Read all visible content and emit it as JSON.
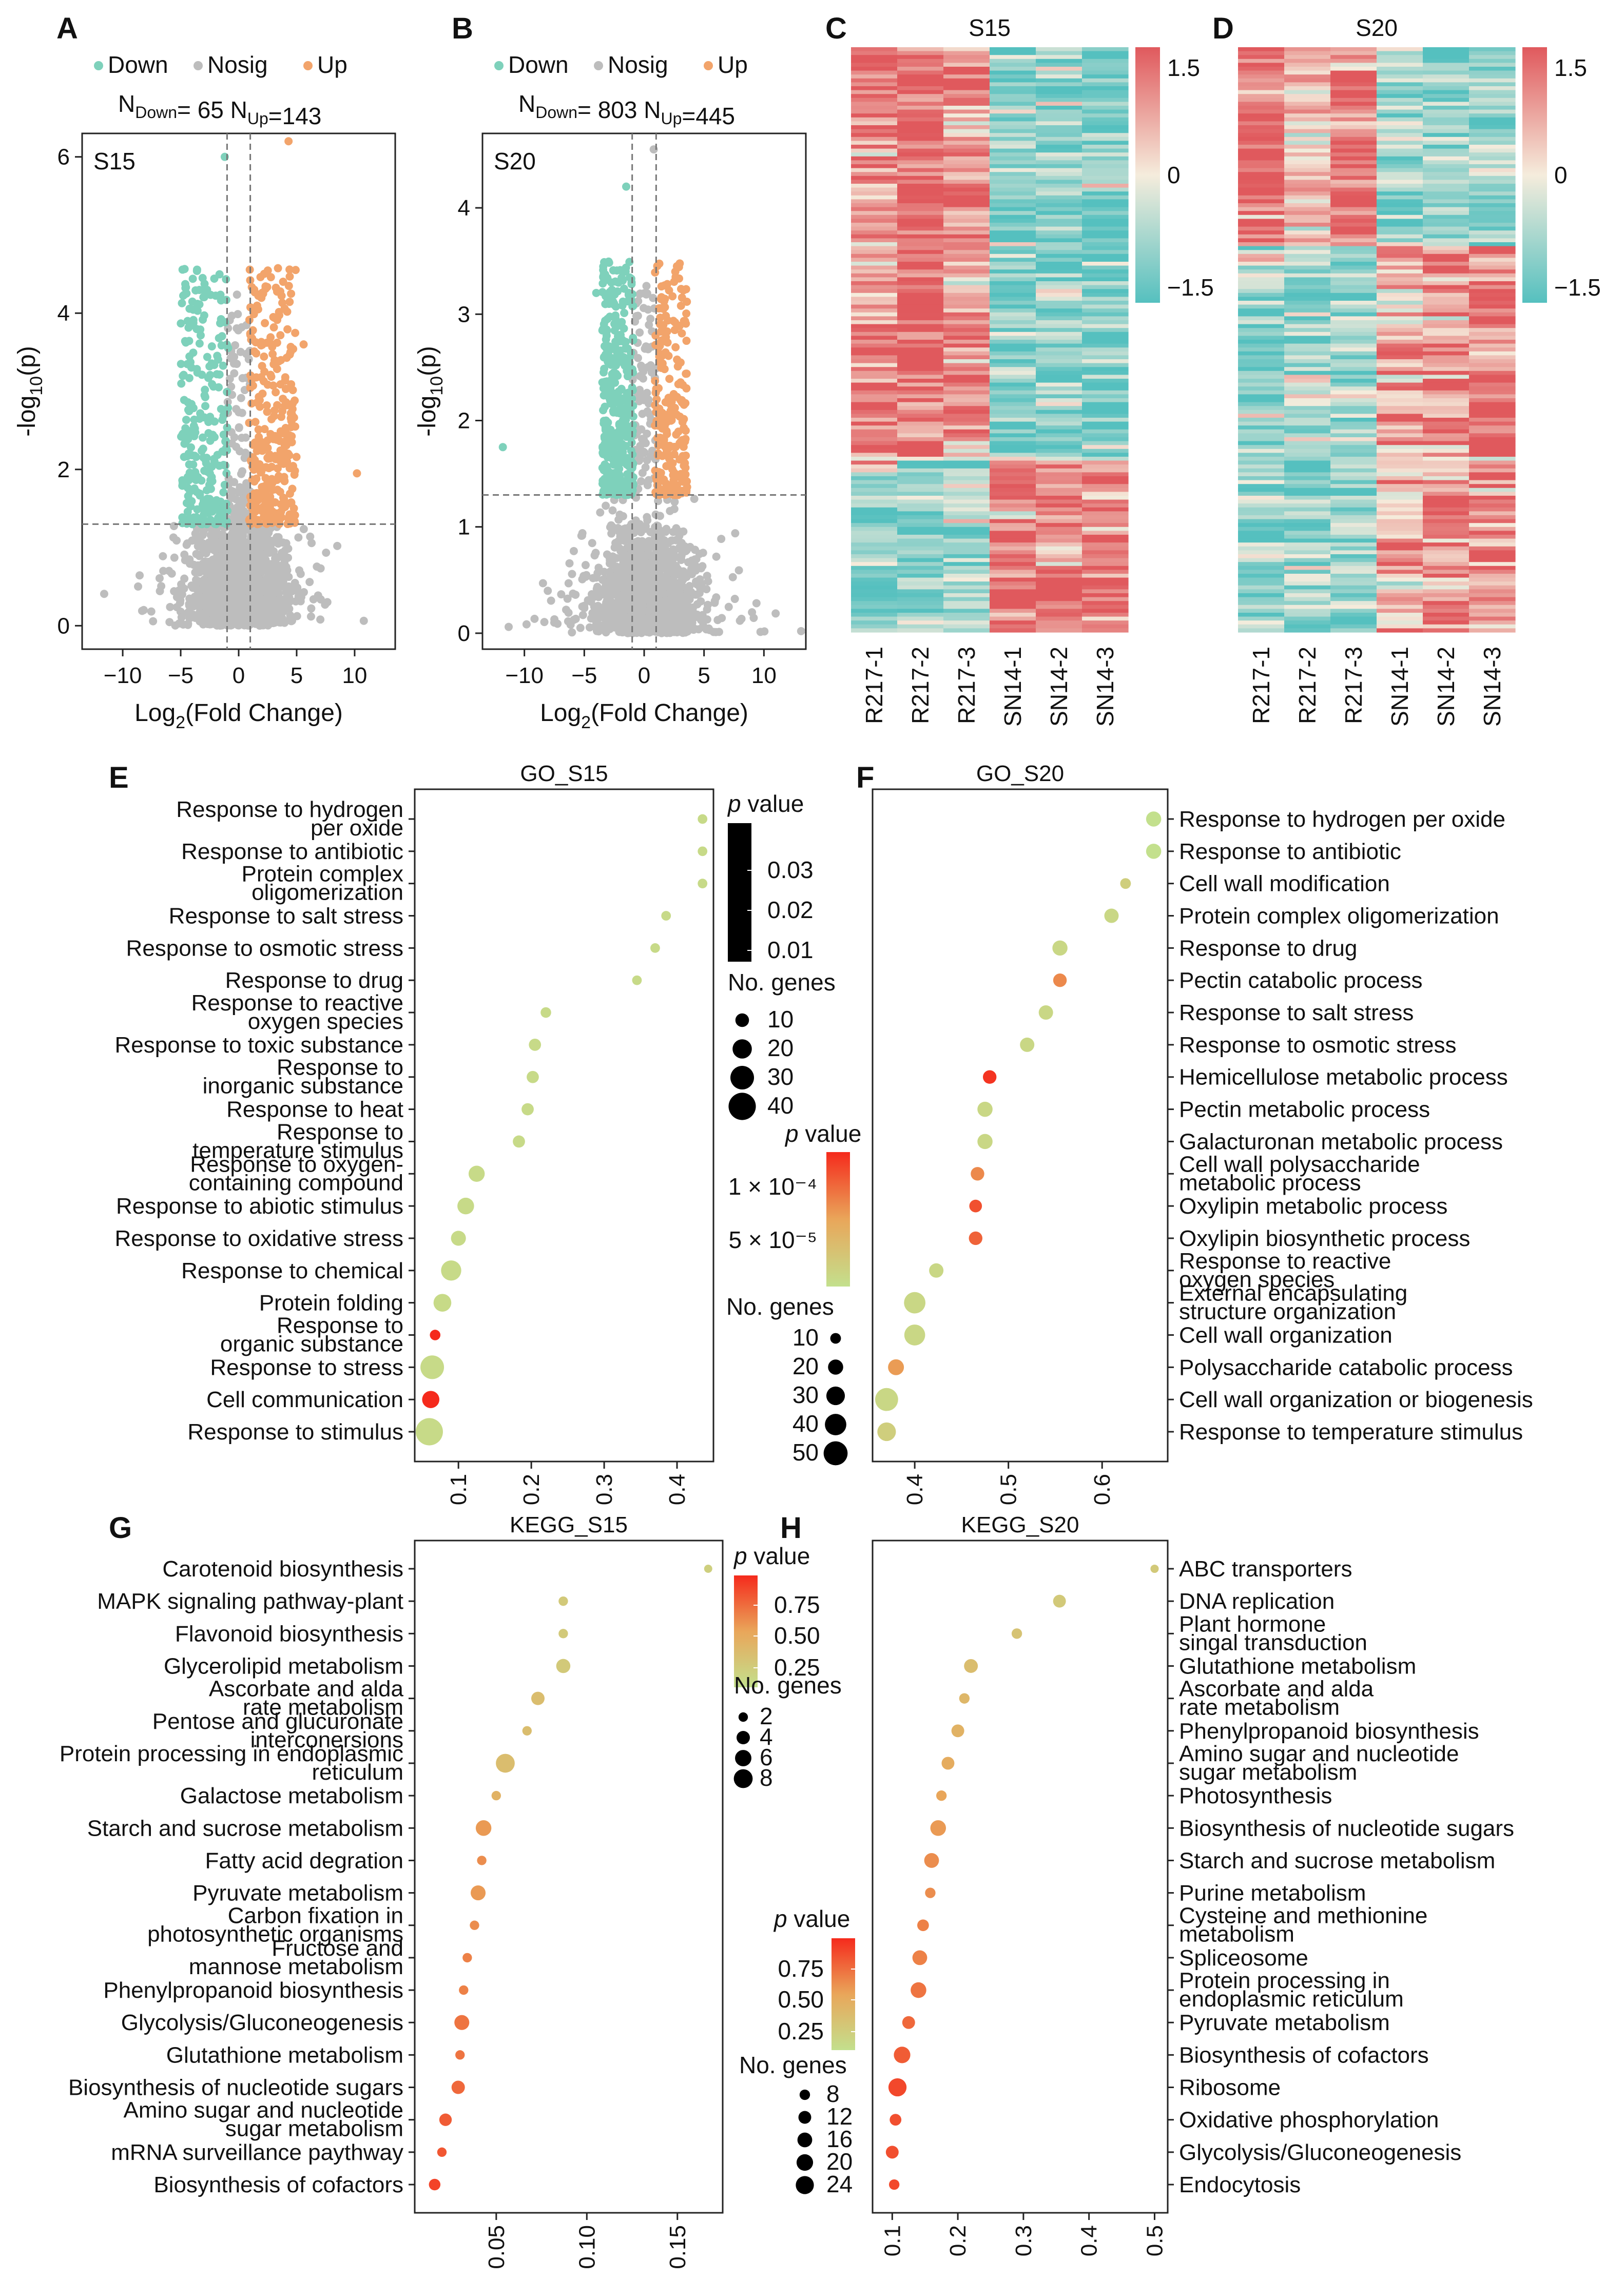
{
  "panels": {
    "A": "A",
    "B": "B",
    "C": "C",
    "D": "D",
    "E": "E",
    "F": "F",
    "G": "G",
    "H": "H"
  },
  "colors": {
    "down": "#7ed1bb",
    "nosig": "#bdbdbd",
    "up": "#f2a46b",
    "heat_high": "#e0595d",
    "heat_mid": "#f5ecdc",
    "heat_low": "#55c0bf",
    "pval_high": "#f52a1c",
    "pval_low": "#c3e08d"
  },
  "volcano": {
    "legend": {
      "down": "Down",
      "nosig": "Nosig",
      "up": "Up"
    },
    "xlabel_prefix": "Log",
    "xlabel_sub": "2",
    "xlabel_suffix": "(Fold Change)",
    "ylabel_prefix": "-log",
    "ylabel_sub": "10",
    "ylabel_suffix": "(p)",
    "n_prefix": "N",
    "down_sub": "Down",
    "up_sub": "Up"
  },
  "chart_data": [
    {
      "id": "A",
      "type": "scatter",
      "title": "S15",
      "n_down": "65",
      "n_up": "143",
      "xlim": [
        -13.5,
        13.5
      ],
      "ylim": [
        -0.3,
        6.3
      ],
      "xticks": [
        -10,
        -5,
        0,
        5,
        10
      ],
      "yticks": [
        0,
        2,
        4,
        6
      ],
      "fc_threshold": [
        -1,
        1
      ],
      "p_threshold": 1.3,
      "spread": {
        "down_x": [
          -5,
          -0.9
        ],
        "up_x": [
          0.9,
          5
        ],
        "max_y": 4.6
      },
      "highlight_points": [
        [
          4.3,
          6.2
        ],
        [
          -1.2,
          6.0
        ],
        [
          10.2,
          1.95
        ],
        [
          -4.4,
          3.9
        ],
        [
          5.6,
          3.6
        ]
      ]
    },
    {
      "id": "B",
      "type": "scatter",
      "title": "S20",
      "n_down": "803",
      "n_up": "445",
      "xlim": [
        -13.5,
        13.5
      ],
      "ylim": [
        -0.15,
        4.7
      ],
      "xticks": [
        -10,
        -5,
        0,
        5,
        10
      ],
      "yticks": [
        0,
        1,
        2,
        3,
        4
      ],
      "fc_threshold": [
        -1,
        1
      ],
      "p_threshold": 1.3,
      "spread": {
        "down_x": [
          -3.5,
          -0.9
        ],
        "up_x": [
          0.9,
          3.6
        ],
        "max_y": 3.5
      },
      "highlight_points": [
        [
          0.8,
          4.55
        ],
        [
          -1.5,
          4.2
        ],
        [
          -11.8,
          1.75
        ],
        [
          -3,
          1.9
        ],
        [
          2.6,
          3.4
        ],
        [
          -4,
          3.2
        ]
      ]
    },
    {
      "id": "C",
      "type": "heatmap",
      "title": "S15",
      "columns": [
        "R217-1",
        "R217-2",
        "R217-3",
        "SN14-1",
        "SN14-2",
        "SN14-3"
      ],
      "scale_ticks": [
        "1.5",
        "0",
        "−1.5"
      ],
      "row_count": 208,
      "block_split_fraction": 0.7
    },
    {
      "id": "D",
      "type": "heatmap",
      "title": "S20",
      "columns": [
        "R217-1",
        "R217-2",
        "R217-3",
        "SN14-1",
        "SN14-2",
        "SN14-3"
      ],
      "scale_ticks": [
        "1.5",
        "0",
        "−1.5"
      ],
      "row_count": 1248,
      "block_split_fraction": 0.34
    },
    {
      "id": "E",
      "type": "scatter",
      "title": "GO_S15",
      "xlim": [
        0.04,
        0.45
      ],
      "xticks": [
        "0.1",
        "0.2",
        "0.3",
        "0.4"
      ],
      "terms": [
        {
          "label": [
            "Response to hydrogen",
            "per oxide"
          ],
          "x": 0.435,
          "n": 5,
          "p": 0.03
        },
        {
          "label": [
            "Response to antibiotic"
          ],
          "x": 0.435,
          "n": 5,
          "p": 0.03
        },
        {
          "label": [
            "Protein complex",
            "oligomerization"
          ],
          "x": 0.435,
          "n": 5,
          "p": 0.03
        },
        {
          "label": [
            "Response to salt stress"
          ],
          "x": 0.385,
          "n": 5,
          "p": 0.03
        },
        {
          "label": [
            "Response to osmotic stress"
          ],
          "x": 0.37,
          "n": 5,
          "p": 0.03
        },
        {
          "label": [
            "Response to drug"
          ],
          "x": 0.345,
          "n": 5,
          "p": 0.03
        },
        {
          "label": [
            "Response to reactive",
            "oxygen species"
          ],
          "x": 0.22,
          "n": 6,
          "p": 0.028
        },
        {
          "label": [
            "Response to toxic substance"
          ],
          "x": 0.205,
          "n": 8,
          "p": 0.028
        },
        {
          "label": [
            "Response to",
            "inorganic substance"
          ],
          "x": 0.202,
          "n": 8,
          "p": 0.026
        },
        {
          "label": [
            "Response to heat"
          ],
          "x": 0.195,
          "n": 8,
          "p": 0.026
        },
        {
          "label": [
            "Response to",
            "temperature stimulus"
          ],
          "x": 0.183,
          "n": 8,
          "p": 0.026
        },
        {
          "label": [
            "Response to oxygen-",
            "containing compound"
          ],
          "x": 0.125,
          "n": 14,
          "p": 0.024
        },
        {
          "label": [
            "Response to abiotic stimulus"
          ],
          "x": 0.11,
          "n": 15,
          "p": 0.022
        },
        {
          "label": [
            "Response to oxidative stress"
          ],
          "x": 0.1,
          "n": 12,
          "p": 0.022
        },
        {
          "label": [
            "Response to chemical"
          ],
          "x": 0.09,
          "n": 22,
          "p": 0.02
        },
        {
          "label": [
            "Protein folding"
          ],
          "x": 0.078,
          "n": 17,
          "p": 0.016
        },
        {
          "label": [
            "Response to",
            "organic substance"
          ],
          "x": 0.068,
          "n": 6,
          "p": 0.001
        },
        {
          "label": [
            "Response to stress"
          ],
          "x": 0.064,
          "n": 30,
          "p": 0.018
        },
        {
          "label": [
            "Cell communication"
          ],
          "x": 0.062,
          "n": 16,
          "p": 0.001
        },
        {
          "label": [
            "Response to stimulus"
          ],
          "x": 0.06,
          "n": 40,
          "p": 0.02
        }
      ],
      "legend": {
        "pvalue_title": "value",
        "pvalue_ticks": [
          "0.03",
          "0.02",
          "0.01"
        ],
        "ngenes_title": "No. genes",
        "ngenes_ticks": [
          "10",
          "20",
          "30",
          "40"
        ]
      }
    },
    {
      "id": "F",
      "type": "scatter",
      "title": "GO_S20",
      "xlim": [
        0.355,
        0.67
      ],
      "xticks": [
        "0.4",
        "0.5",
        "0.6"
      ],
      "terms": [
        {
          "label": [
            "Response to hydrogen per oxide"
          ],
          "x": 0.655,
          "n": 20,
          "p": 2e-05
        },
        {
          "label": [
            "Response to antibiotic"
          ],
          "x": 0.655,
          "n": 20,
          "p": 2e-05
        },
        {
          "label": [
            "Cell wall modification"
          ],
          "x": 0.625,
          "n": 10,
          "p": 4e-05
        },
        {
          "label": [
            "Protein complex oligomerization"
          ],
          "x": 0.61,
          "n": 18,
          "p": 3e-05
        },
        {
          "label": [
            "Response to drug"
          ],
          "x": 0.555,
          "n": 20,
          "p": 3e-05
        },
        {
          "label": [
            "Pectin catabolic process"
          ],
          "x": 0.555,
          "n": 16,
          "p": 0.0001
        },
        {
          "label": [
            "Response to salt stress"
          ],
          "x": 0.54,
          "n": 18,
          "p": 3e-05
        },
        {
          "label": [
            "Response to osmotic stress"
          ],
          "x": 0.52,
          "n": 18,
          "p": 3e-05
        },
        {
          "label": [
            "Hemicellulose metabolic process"
          ],
          "x": 0.48,
          "n": 16,
          "p": 0.000145
        },
        {
          "label": [
            "Pectin metabolic process"
          ],
          "x": 0.475,
          "n": 20,
          "p": 3e-05
        },
        {
          "label": [
            "Galacturonan metabolic process"
          ],
          "x": 0.475,
          "n": 20,
          "p": 3e-05
        },
        {
          "label": [
            "Cell wall polysaccharide",
            "metabolic process"
          ],
          "x": 0.467,
          "n": 16,
          "p": 0.0001
        },
        {
          "label": [
            "Oxylipin metabolic process"
          ],
          "x": 0.465,
          "n": 14,
          "p": 0.00013
        },
        {
          "label": [
            "Oxylipin biosynthetic process"
          ],
          "x": 0.465,
          "n": 16,
          "p": 0.00012
        },
        {
          "label": [
            "Response to reactive",
            "oxygen species"
          ],
          "x": 0.423,
          "n": 18,
          "p": 3e-05
        },
        {
          "label": [
            "External encapsulating",
            "structure organization"
          ],
          "x": 0.4,
          "n": 40,
          "p": 3e-05
        },
        {
          "label": [
            "Cell wall organization"
          ],
          "x": 0.4,
          "n": 38,
          "p": 3e-05
        },
        {
          "label": [
            "Polysaccharide catabolic process"
          ],
          "x": 0.38,
          "n": 22,
          "p": 9e-05
        },
        {
          "label": [
            "Cell wall organization or biogenesis"
          ],
          "x": 0.37,
          "n": 46,
          "p": 3e-05
        },
        {
          "label": [
            "Response to temperature stimulus"
          ],
          "x": 0.37,
          "n": 30,
          "p": 4e-05
        }
      ],
      "legend": {
        "pvalue_title": "value",
        "pvalue_ticks": [
          "1 × 10⁻⁴",
          "5 × 10⁻⁵"
        ],
        "ngenes_title": "No. genes",
        "ngenes_ticks": [
          "10",
          "20",
          "30",
          "40",
          "50"
        ]
      }
    },
    {
      "id": "G",
      "type": "scatter",
      "title": "KEGG_S15",
      "xlim": [
        0.005,
        0.175
      ],
      "xticks": [
        "0.05",
        "0.10",
        "0.15"
      ],
      "terms": [
        {
          "label": [
            "Carotenoid biosynthesis"
          ],
          "x": 0.167,
          "n": 1.5,
          "p": 0.15
        },
        {
          "label": [
            "MAPK signaling pathway-plant"
          ],
          "x": 0.087,
          "n": 2,
          "p": 0.2
        },
        {
          "label": [
            "Flavonoid biosynthesis"
          ],
          "x": 0.087,
          "n": 2,
          "p": 0.2
        },
        {
          "label": [
            "Glycerolipid metabolism"
          ],
          "x": 0.087,
          "n": 4.5,
          "p": 0.2
        },
        {
          "label": [
            "Ascorbate and alda",
            "rate metabolism"
          ],
          "x": 0.073,
          "n": 4,
          "p": 0.3
        },
        {
          "label": [
            "Pentose and glucuronate",
            "interconersions"
          ],
          "x": 0.067,
          "n": 2,
          "p": 0.3
        },
        {
          "label": [
            "Protein processing in endoplasmic",
            "reticulum"
          ],
          "x": 0.055,
          "n": 8,
          "p": 0.3
        },
        {
          "label": [
            "Galactose metabolism"
          ],
          "x": 0.05,
          "n": 2,
          "p": 0.4
        },
        {
          "label": [
            "Starch and sucrose metabolism"
          ],
          "x": 0.043,
          "n": 5.5,
          "p": 0.55
        },
        {
          "label": [
            "Fatty acid degration"
          ],
          "x": 0.042,
          "n": 2,
          "p": 0.6
        },
        {
          "label": [
            "Pyruvate metabolism"
          ],
          "x": 0.04,
          "n": 5,
          "p": 0.55
        },
        {
          "label": [
            "Carbon fixation in",
            "photosynthetic organisms"
          ],
          "x": 0.038,
          "n": 2,
          "p": 0.6
        },
        {
          "label": [
            "Fructose and",
            "mannose metabolism"
          ],
          "x": 0.034,
          "n": 2,
          "p": 0.65
        },
        {
          "label": [
            "Phenylpropanoid biosynthesis"
          ],
          "x": 0.032,
          "n": 2,
          "p": 0.65
        },
        {
          "label": [
            "Glycolysis/Gluconeogenesis"
          ],
          "x": 0.031,
          "n": 5,
          "p": 0.7
        },
        {
          "label": [
            "Glutathione metabolism"
          ],
          "x": 0.03,
          "n": 2,
          "p": 0.7
        },
        {
          "label": [
            "Biosynthesis of nucleotide sugars"
          ],
          "x": 0.029,
          "n": 4,
          "p": 0.75
        },
        {
          "label": [
            "Amino sugar and nucleotide",
            "sugar metabolism"
          ],
          "x": 0.022,
          "n": 3.5,
          "p": 0.8
        },
        {
          "label": [
            "mRNA surveillance paythway"
          ],
          "x": 0.02,
          "n": 2,
          "p": 0.82
        },
        {
          "label": [
            "Biosynthesis of cofactors"
          ],
          "x": 0.016,
          "n": 3,
          "p": 0.9
        }
      ],
      "legend": {
        "pvalue_title": "value",
        "pvalue_ticks": [
          "0.75",
          "0.50",
          "0.25"
        ],
        "ngenes_title": "No. genes",
        "ngenes_ticks": [
          "2",
          "4",
          "6",
          "8"
        ]
      }
    },
    {
      "id": "H",
      "type": "scatter",
      "title": "KEGG_S20",
      "xlim": [
        0.07,
        0.52
      ],
      "xticks": [
        "0.1",
        "0.2",
        "0.3",
        "0.4",
        "0.5"
      ],
      "terms": [
        {
          "label": [
            "ABC transporters"
          ],
          "x": 0.5,
          "n": 5,
          "p": 0.2
        },
        {
          "label": [
            "DNA replication"
          ],
          "x": 0.355,
          "n": 12,
          "p": 0.2
        },
        {
          "label": [
            "Plant hormone",
            "singal transduction"
          ],
          "x": 0.29,
          "n": 8,
          "p": 0.25
        },
        {
          "label": [
            "Glutathione metabolism"
          ],
          "x": 0.22,
          "n": 14,
          "p": 0.3
        },
        {
          "label": [
            "Ascorbate and alda",
            "rate metabolism"
          ],
          "x": 0.21,
          "n": 8,
          "p": 0.35
        },
        {
          "label": [
            "Phenylpropanoid biosynthesis"
          ],
          "x": 0.2,
          "n": 12,
          "p": 0.4
        },
        {
          "label": [
            "Amino sugar and nucleotide",
            "sugar metabolism"
          ],
          "x": 0.185,
          "n": 12,
          "p": 0.45
        },
        {
          "label": [
            "Photosynthesis"
          ],
          "x": 0.175,
          "n": 8,
          "p": 0.5
        },
        {
          "label": [
            "Biosynthesis of nucleotide sugars"
          ],
          "x": 0.17,
          "n": 18,
          "p": 0.55
        },
        {
          "label": [
            "Starch and sucrose metabolism"
          ],
          "x": 0.16,
          "n": 16,
          "p": 0.6
        },
        {
          "label": [
            "Purine metabolism"
          ],
          "x": 0.158,
          "n": 8,
          "p": 0.6
        },
        {
          "label": [
            "Cysteine and methionine",
            "metabolism"
          ],
          "x": 0.147,
          "n": 10,
          "p": 0.65
        },
        {
          "label": [
            "Spliceosome"
          ],
          "x": 0.142,
          "n": 16,
          "p": 0.65
        },
        {
          "label": [
            "Protein processing in",
            "endoplasmic reticulum"
          ],
          "x": 0.14,
          "n": 18,
          "p": 0.7
        },
        {
          "label": [
            "Pyruvate metabolism"
          ],
          "x": 0.125,
          "n": 12,
          "p": 0.75
        },
        {
          "label": [
            "Biosynthesis of cofactors"
          ],
          "x": 0.115,
          "n": 20,
          "p": 0.8
        },
        {
          "label": [
            "Ribosome"
          ],
          "x": 0.108,
          "n": 24,
          "p": 0.88
        },
        {
          "label": [
            "Oxidative phosphorylation"
          ],
          "x": 0.105,
          "n": 10,
          "p": 0.85
        },
        {
          "label": [
            "Glycolysis/Gluconeogenesis"
          ],
          "x": 0.1,
          "n": 12,
          "p": 0.85
        },
        {
          "label": [
            "Endocytosis"
          ],
          "x": 0.103,
          "n": 8,
          "p": 0.88
        }
      ],
      "legend": {
        "pvalue_title": "value",
        "pvalue_ticks": [
          "0.75",
          "0.50",
          "0.25"
        ],
        "ngenes_title": "No. genes",
        "ngenes_ticks": [
          "8",
          "12",
          "16",
          "20",
          "24"
        ]
      }
    }
  ]
}
